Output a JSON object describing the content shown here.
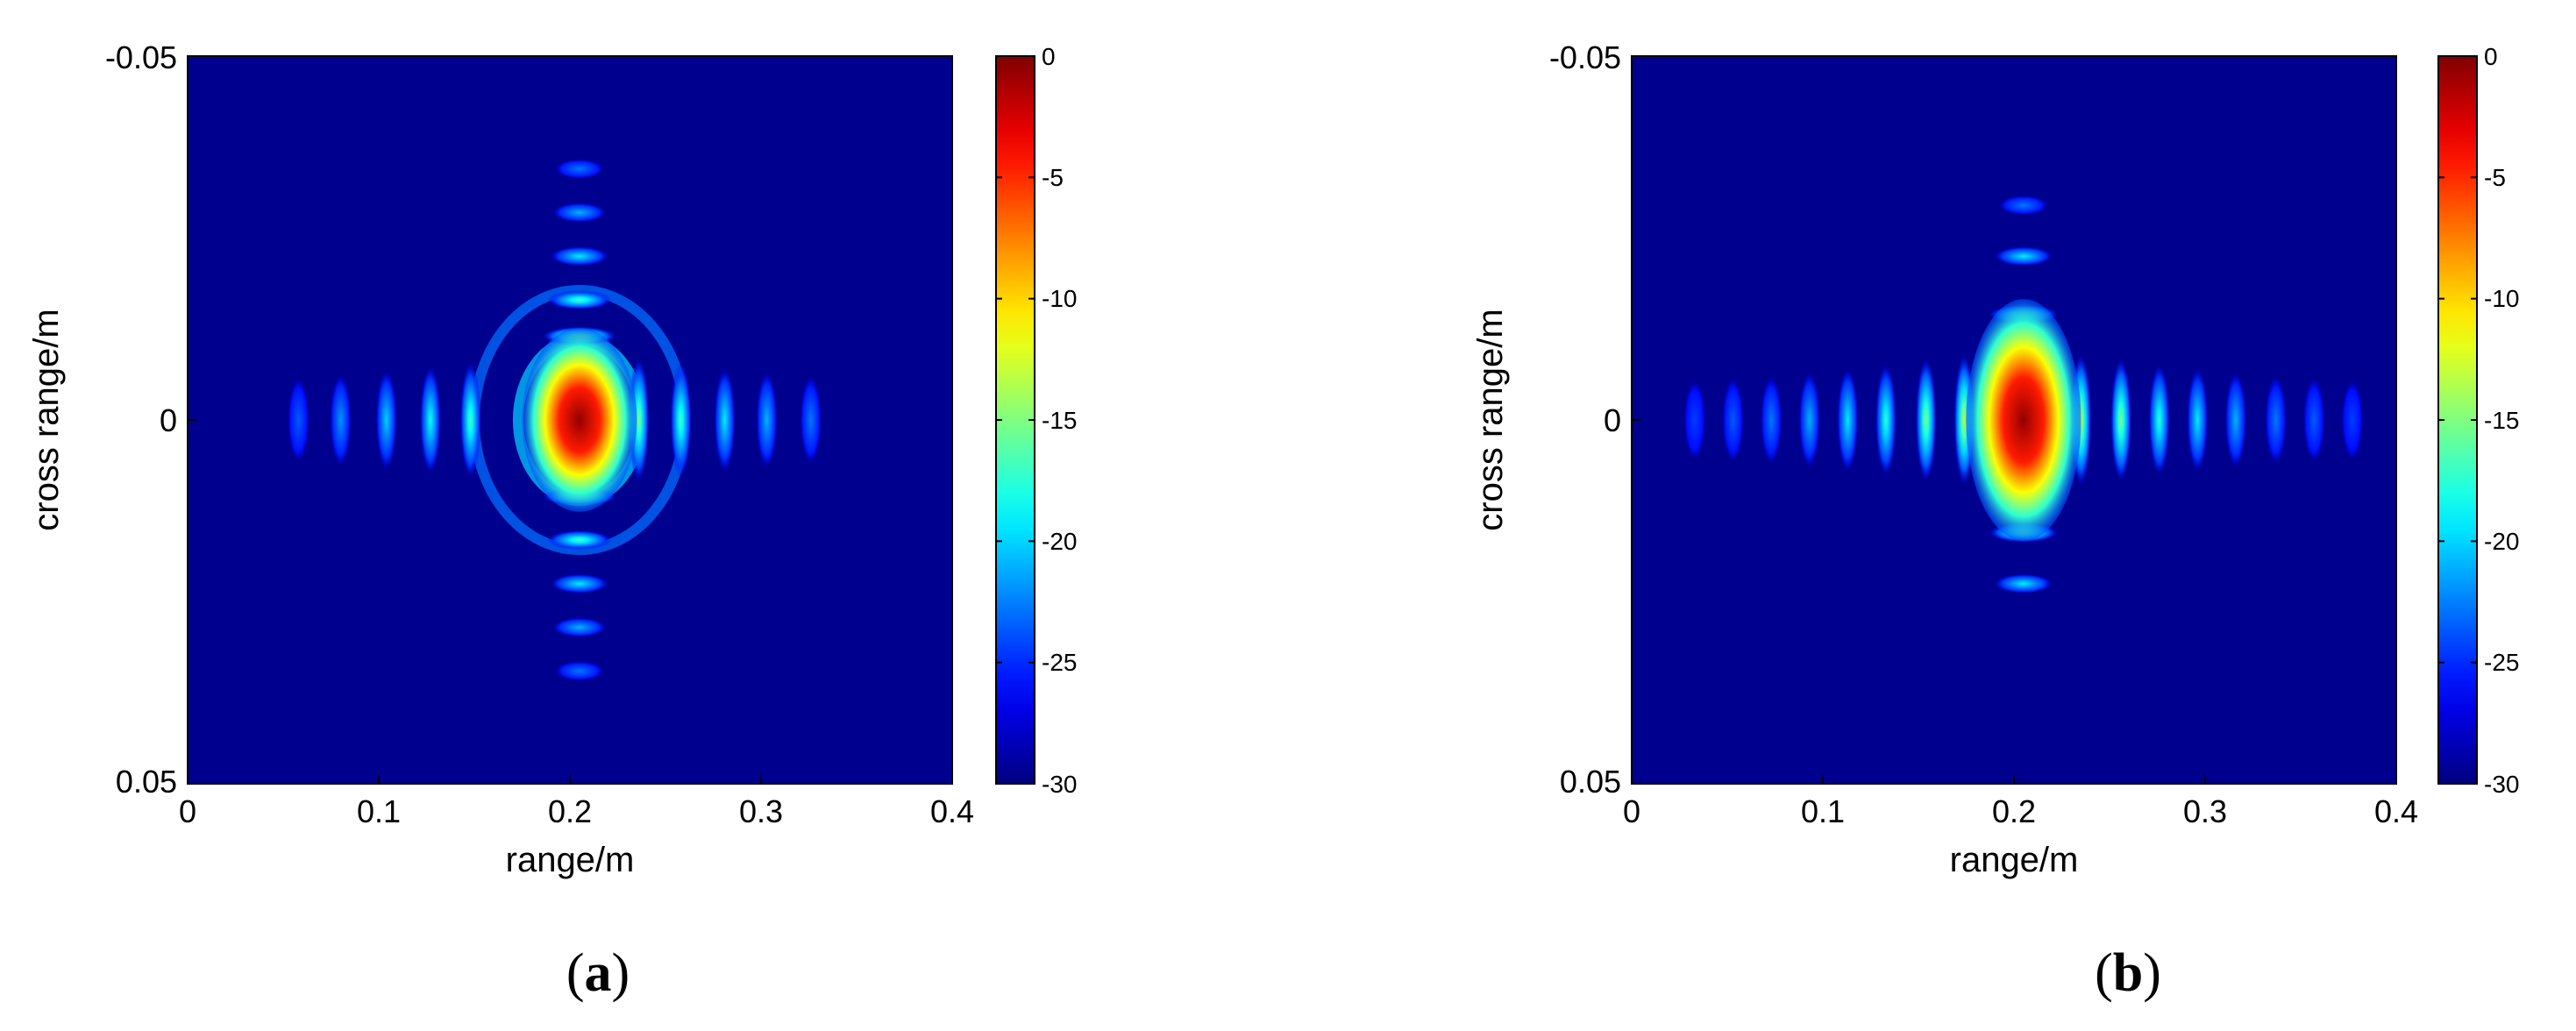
{
  "chart_data": [
    {
      "type": "heatmap",
      "panel_label": "a",
      "xlabel": "range/m",
      "ylabel": "cross range/m",
      "xlim": [
        0,
        0.4
      ],
      "ylim": [
        -0.05,
        0.05
      ],
      "y_direction": "reversed",
      "x_ticks": [
        "0",
        "0.1",
        "0.2",
        "0.3",
        "0.4"
      ],
      "y_ticks": [
        "-0.05",
        "0",
        "0.05"
      ],
      "colormap": "jet",
      "colorbar_range_db": [
        -30,
        0
      ],
      "colorbar_ticks": [
        "0",
        "-5",
        "-10",
        "-15",
        "-20",
        "-25",
        "-30"
      ],
      "peak": {
        "range": 0.205,
        "cross_range": 0.0,
        "value_db": 0
      },
      "mainlobe": {
        "range_width": 0.04,
        "cross_width": 0.009
      },
      "range_sidelobes": [
        {
          "x": 0.236,
          "db": -17
        },
        {
          "x": 0.258,
          "db": -19
        },
        {
          "x": 0.281,
          "db": -22
        },
        {
          "x": 0.303,
          "db": -24
        },
        {
          "x": 0.326,
          "db": -26
        },
        {
          "x": 0.148,
          "db": -19
        },
        {
          "x": 0.127,
          "db": -21
        },
        {
          "x": 0.104,
          "db": -23
        },
        {
          "x": 0.08,
          "db": -25
        },
        {
          "x": 0.058,
          "db": -27
        }
      ],
      "cross_sidelobes": [
        {
          "y": -0.0115,
          "db": -15
        },
        {
          "y": -0.0165,
          "db": -19
        },
        {
          "y": -0.0225,
          "db": -22
        },
        {
          "y": -0.0285,
          "db": -24
        },
        {
          "y": -0.0345,
          "db": -26
        },
        {
          "y": 0.0105,
          "db": -15
        },
        {
          "y": 0.0165,
          "db": -19
        },
        {
          "y": 0.0225,
          "db": -22
        },
        {
          "y": 0.0285,
          "db": -24
        },
        {
          "y": 0.0345,
          "db": -26
        }
      ],
      "arcs": true
    },
    {
      "type": "heatmap",
      "panel_label": "b",
      "xlabel": "range/m",
      "ylabel": "cross range/m",
      "xlim": [
        0,
        0.4
      ],
      "ylim": [
        -0.05,
        0.05
      ],
      "y_direction": "reversed",
      "x_ticks": [
        "0",
        "0.1",
        "0.2",
        "0.3",
        "0.4"
      ],
      "y_ticks": [
        "-0.05",
        "0",
        "0.05"
      ],
      "colormap": "jet",
      "colorbar_range_db": [
        -30,
        0
      ],
      "colorbar_ticks": [
        "0",
        "-5",
        "-10",
        "-15",
        "-20",
        "-25",
        "-30"
      ],
      "peak": {
        "range": 0.205,
        "cross_range": 0.0,
        "value_db": 0
      },
      "mainlobe": {
        "range_width": 0.04,
        "cross_width": 0.013
      },
      "range_sidelobes": [
        {
          "x": 0.235,
          "db": -15
        },
        {
          "x": 0.256,
          "db": -17
        },
        {
          "x": 0.276,
          "db": -20
        },
        {
          "x": 0.296,
          "db": -22
        },
        {
          "x": 0.316,
          "db": -24
        },
        {
          "x": 0.337,
          "db": -26
        },
        {
          "x": 0.357,
          "db": -27
        },
        {
          "x": 0.377,
          "db": -28
        },
        {
          "x": 0.174,
          "db": -15
        },
        {
          "x": 0.154,
          "db": -17
        },
        {
          "x": 0.133,
          "db": -20
        },
        {
          "x": 0.113,
          "db": -22
        },
        {
          "x": 0.093,
          "db": -24
        },
        {
          "x": 0.073,
          "db": -26
        },
        {
          "x": 0.053,
          "db": -27
        },
        {
          "x": 0.033,
          "db": -28
        }
      ],
      "cross_sidelobes": [
        {
          "y": -0.0145,
          "db": -17
        },
        {
          "y": -0.0225,
          "db": -22
        },
        {
          "y": -0.0295,
          "db": -26
        },
        {
          "y": 0.0155,
          "db": -17
        },
        {
          "y": 0.0225,
          "db": -22
        }
      ],
      "arcs": false
    }
  ]
}
